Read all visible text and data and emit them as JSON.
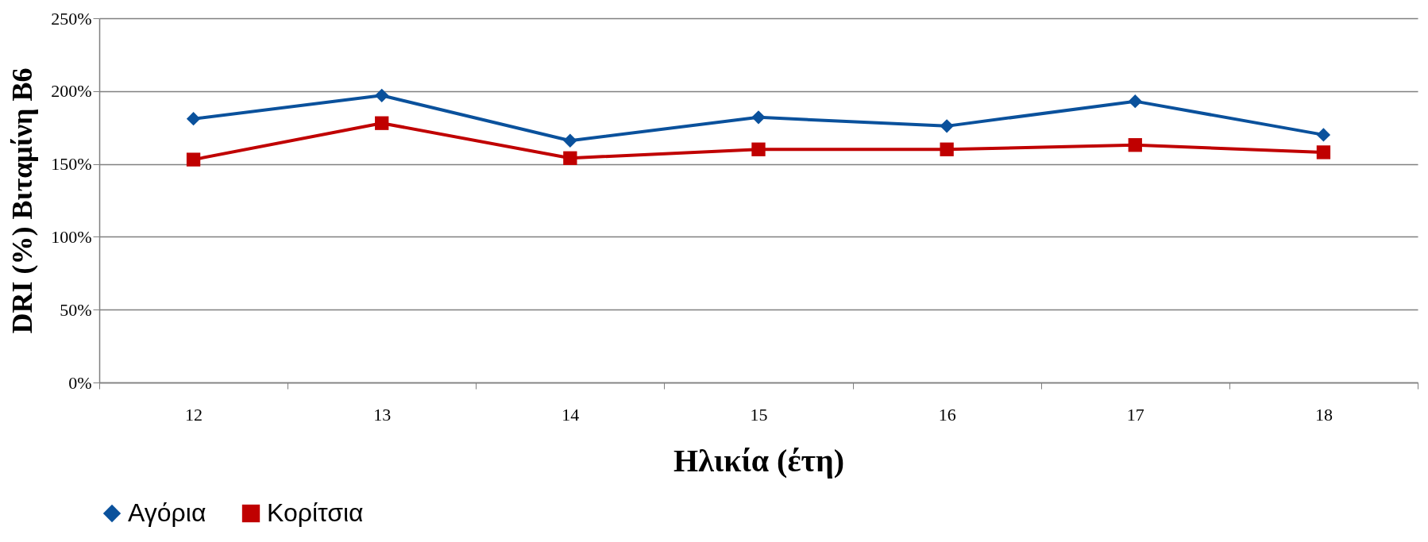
{
  "chart_data": {
    "type": "line",
    "xlabel": "Ηλικία (έτη)",
    "ylabel": "DRI (%) Βιταμίνη Β6",
    "categories": [
      "12",
      "13",
      "14",
      "15",
      "16",
      "17",
      "18"
    ],
    "series": [
      {
        "name": "Αγόρια",
        "color": "#0a519c",
        "marker": "diamond",
        "values": [
          181,
          197,
          166,
          182,
          176,
          193,
          170
        ]
      },
      {
        "name": "Κορίτσια",
        "color": "#c00000",
        "marker": "square",
        "values": [
          153,
          178,
          154,
          160,
          160,
          163,
          158
        ]
      }
    ],
    "ylim": [
      0,
      250
    ],
    "yticks": [
      {
        "value": 0,
        "label": "0%"
      },
      {
        "value": 50,
        "label": "50%"
      },
      {
        "value": 100,
        "label": "100%"
      },
      {
        "value": 150,
        "label": "150%"
      },
      {
        "value": 200,
        "label": "200%"
      },
      {
        "value": 250,
        "label": "250%"
      }
    ],
    "grid": "y",
    "legend": "bottom",
    "line_style": "solid"
  }
}
